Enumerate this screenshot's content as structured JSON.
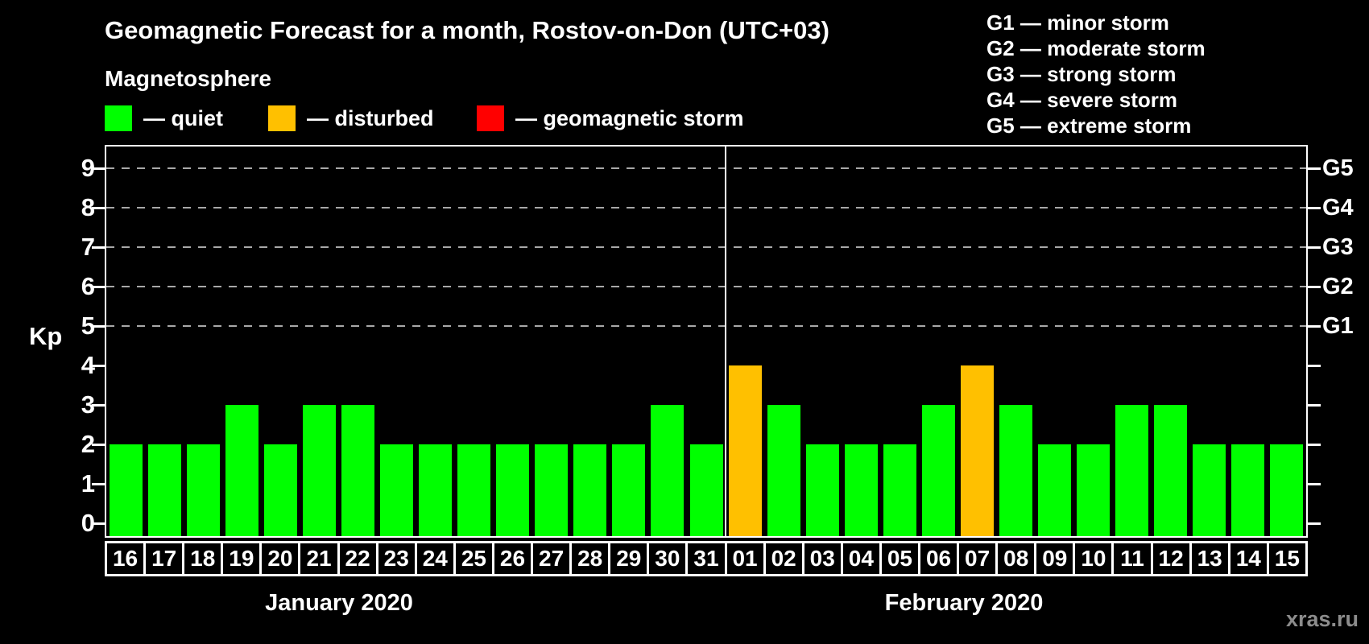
{
  "title": "Geomagnetic Forecast for a month, Rostov-on-Don (UTC+03)",
  "subtitle": "Magnetosphere",
  "legend": {
    "items": [
      {
        "name": "quiet",
        "label": "— quiet",
        "color": "#00ff00"
      },
      {
        "name": "disturbed",
        "label": "— disturbed",
        "color": "#ffc000"
      },
      {
        "name": "storm",
        "label": "— geomagnetic storm",
        "color": "#ff0000"
      }
    ]
  },
  "g_scale_legend": [
    "G1 — minor storm",
    "G2 — moderate storm",
    "G3 — strong storm",
    "G4 — severe storm",
    "G5 — extreme storm"
  ],
  "watermark": "xras.ru",
  "chart_data": {
    "type": "bar",
    "ylabel": "Kp",
    "ylim": [
      0,
      9
    ],
    "yticks": [
      0,
      1,
      2,
      3,
      4,
      5,
      6,
      7,
      8,
      9
    ],
    "gridlines_at_kp": [
      5,
      6,
      7,
      8,
      9
    ],
    "right_axis_ticks": [
      {
        "kp": 5,
        "label": "G1"
      },
      {
        "kp": 6,
        "label": "G2"
      },
      {
        "kp": 7,
        "label": "G3"
      },
      {
        "kp": 8,
        "label": "G4"
      },
      {
        "kp": 9,
        "label": "G5"
      }
    ],
    "status_colors": {
      "quiet": "#00ff00",
      "disturbed": "#ffc000",
      "storm": "#ff0000"
    },
    "grid": "dashed horizontal lines at Kp 5-9 only",
    "legend_position": "top-left",
    "months": [
      {
        "key": "jan",
        "label": "January 2020",
        "days": [
          "16",
          "17",
          "18",
          "19",
          "20",
          "21",
          "22",
          "23",
          "24",
          "25",
          "26",
          "27",
          "28",
          "29",
          "30",
          "31"
        ],
        "kp": [
          2,
          2,
          2,
          3,
          2,
          3,
          3,
          2,
          2,
          2,
          2,
          2,
          2,
          2,
          3,
          2
        ],
        "status": [
          "quiet",
          "quiet",
          "quiet",
          "quiet",
          "quiet",
          "quiet",
          "quiet",
          "quiet",
          "quiet",
          "quiet",
          "quiet",
          "quiet",
          "quiet",
          "quiet",
          "quiet",
          "quiet"
        ]
      },
      {
        "key": "feb",
        "label": "February 2020",
        "days": [
          "01",
          "02",
          "03",
          "04",
          "05",
          "06",
          "07",
          "08",
          "09",
          "10",
          "11",
          "12",
          "13",
          "14",
          "15"
        ],
        "kp": [
          4,
          3,
          2,
          2,
          2,
          3,
          4,
          3,
          2,
          2,
          3,
          3,
          2,
          2,
          2
        ],
        "status": [
          "disturbed",
          "quiet",
          "quiet",
          "quiet",
          "quiet",
          "quiet",
          "disturbed",
          "quiet",
          "quiet",
          "quiet",
          "quiet",
          "quiet",
          "quiet",
          "quiet",
          "quiet"
        ]
      }
    ]
  }
}
